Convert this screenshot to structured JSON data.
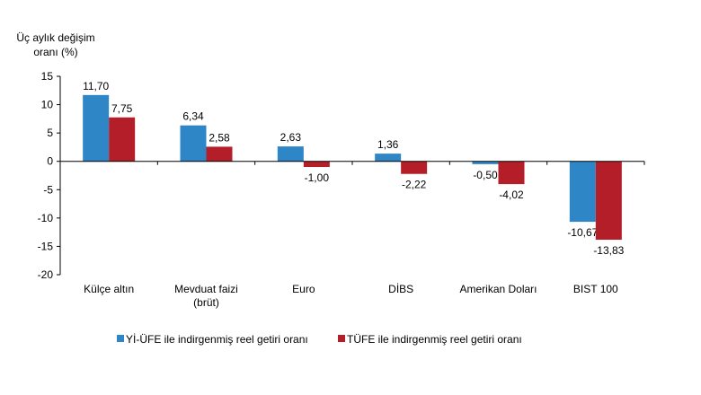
{
  "chart_data": {
    "type": "bar",
    "title": "",
    "ylabel_line1": "Üç aylık değişim",
    "ylabel_line2": "oranı (%)",
    "xlabel": "",
    "ylim": [
      -20,
      15
    ],
    "yticks": [
      "15",
      "10",
      "5",
      "0",
      "-5",
      "-10",
      "-15",
      "-20"
    ],
    "grid": false,
    "legend_position": "bottom",
    "categories": [
      [
        "Külçe altın"
      ],
      [
        "Mevduat faizi",
        "(brüt)"
      ],
      [
        "Euro"
      ],
      [
        "DİBS"
      ],
      [
        "Amerikan Doları"
      ],
      [
        "BIST 100"
      ]
    ],
    "series": [
      {
        "name": "Yİ-ÜFE ile indirgenmiş reel getiri oranı",
        "color": "#2e86c7",
        "values": [
          11.7,
          6.34,
          2.63,
          1.36,
          -0.5,
          -10.67
        ],
        "labels": [
          "11,70",
          "6,34",
          "2,63",
          "1,36",
          "-0,50",
          "-10,67"
        ]
      },
      {
        "name": "TÜFE ile indirgenmiş reel getiri oranı",
        "color": "#b41e28",
        "values": [
          7.75,
          2.58,
          -1.0,
          -2.22,
          -4.02,
          -13.83
        ],
        "labels": [
          "7,75",
          "2,58",
          "-1,00",
          "-2,22",
          "-4,02",
          "-13,83"
        ]
      }
    ]
  }
}
